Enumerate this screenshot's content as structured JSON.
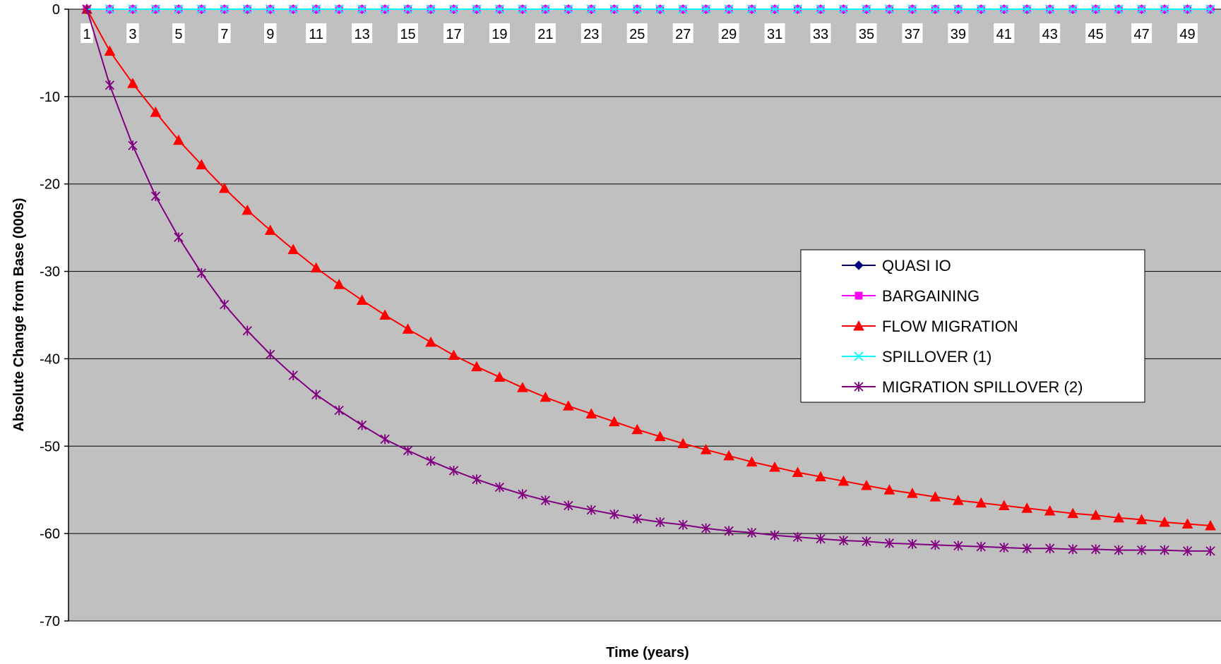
{
  "chart_data": {
    "type": "line",
    "title": "",
    "xlabel": "Time (years)",
    "ylabel": "Absolute Change from Base (000s)",
    "ylim": [
      -70,
      0
    ],
    "yticks": [
      0,
      -10,
      -20,
      -30,
      -40,
      -50,
      -60,
      -70
    ],
    "x": [
      1,
      2,
      3,
      4,
      5,
      6,
      7,
      8,
      9,
      10,
      11,
      12,
      13,
      14,
      15,
      16,
      17,
      18,
      19,
      20,
      21,
      22,
      23,
      24,
      25,
      26,
      27,
      28,
      29,
      30,
      31,
      32,
      33,
      34,
      35,
      36,
      37,
      38,
      39,
      40,
      41,
      42,
      43,
      44,
      45,
      46,
      47,
      48,
      49,
      50
    ],
    "xtick_labels": [
      "1",
      "3",
      "5",
      "7",
      "9",
      "11",
      "13",
      "15",
      "17",
      "19",
      "21",
      "23",
      "25",
      "27",
      "29",
      "31",
      "33",
      "35",
      "37",
      "39",
      "41",
      "43",
      "45",
      "47",
      "49"
    ],
    "grid": "horizontal",
    "legend_position": "right",
    "plot_background": "#C0C0C0",
    "series": [
      {
        "name": "QUASI IO",
        "color": "#000080",
        "marker": "diamond",
        "values": [
          0,
          0,
          0,
          0,
          0,
          0,
          0,
          0,
          0,
          0,
          0,
          0,
          0,
          0,
          0,
          0,
          0,
          0,
          0,
          0,
          0,
          0,
          0,
          0,
          0,
          0,
          0,
          0,
          0,
          0,
          0,
          0,
          0,
          0,
          0,
          0,
          0,
          0,
          0,
          0,
          0,
          0,
          0,
          0,
          0,
          0,
          0,
          0,
          0,
          0
        ]
      },
      {
        "name": "BARGAINING",
        "color": "#FF00FF",
        "marker": "square",
        "values": [
          0,
          0,
          0,
          0,
          0,
          0,
          0,
          0,
          0,
          0,
          0,
          0,
          0,
          0,
          0,
          0,
          0,
          0,
          0,
          0,
          0,
          0,
          0,
          0,
          0,
          0,
          0,
          0,
          0,
          0,
          0,
          0,
          0,
          0,
          0,
          0,
          0,
          0,
          0,
          0,
          0,
          0,
          0,
          0,
          0,
          0,
          0,
          0,
          0,
          0
        ]
      },
      {
        "name": "FLOW MIGRATION",
        "color": "#FF0000",
        "marker": "triangle",
        "values": [
          0,
          -4.8,
          -8.5,
          -11.8,
          -15.0,
          -17.8,
          -20.5,
          -23.0,
          -25.3,
          -27.5,
          -29.6,
          -31.5,
          -33.3,
          -35.0,
          -36.6,
          -38.1,
          -39.6,
          -40.9,
          -42.1,
          -43.3,
          -44.4,
          -45.4,
          -46.3,
          -47.2,
          -48.1,
          -48.9,
          -49.7,
          -50.4,
          -51.1,
          -51.8,
          -52.4,
          -53.0,
          -53.5,
          -54.0,
          -54.5,
          -55.0,
          -55.4,
          -55.8,
          -56.2,
          -56.5,
          -56.8,
          -57.1,
          -57.4,
          -57.7,
          -57.9,
          -58.2,
          -58.4,
          -58.7,
          -58.9,
          -59.1
        ]
      },
      {
        "name": "SPILLOVER (1)",
        "color": "#00FFFF",
        "marker": "x",
        "values": [
          0,
          0,
          0,
          0,
          0,
          0,
          0,
          0,
          0,
          0,
          0,
          0,
          0,
          0,
          0,
          0,
          0,
          0,
          0,
          0,
          0,
          0,
          0,
          0,
          0,
          0,
          0,
          0,
          0,
          0,
          0,
          0,
          0,
          0,
          0,
          0,
          0,
          0,
          0,
          0,
          0,
          0,
          0,
          0,
          0,
          0,
          0,
          0,
          0,
          0
        ]
      },
      {
        "name": "MIGRATION SPILLOVER (2)",
        "color": "#800080",
        "marker": "star",
        "values": [
          0,
          -8.7,
          -15.6,
          -21.4,
          -26.1,
          -30.2,
          -33.8,
          -36.8,
          -39.5,
          -41.9,
          -44.1,
          -45.9,
          -47.6,
          -49.2,
          -50.5,
          -51.7,
          -52.8,
          -53.8,
          -54.7,
          -55.5,
          -56.2,
          -56.8,
          -57.3,
          -57.8,
          -58.3,
          -58.7,
          -59.0,
          -59.4,
          -59.7,
          -59.9,
          -60.2,
          -60.4,
          -60.6,
          -60.8,
          -60.9,
          -61.1,
          -61.2,
          -61.3,
          -61.4,
          -61.5,
          -61.6,
          -61.7,
          -61.7,
          -61.8,
          -61.8,
          -61.9,
          -61.9,
          -61.9,
          -62.0,
          -62.0
        ]
      }
    ]
  }
}
